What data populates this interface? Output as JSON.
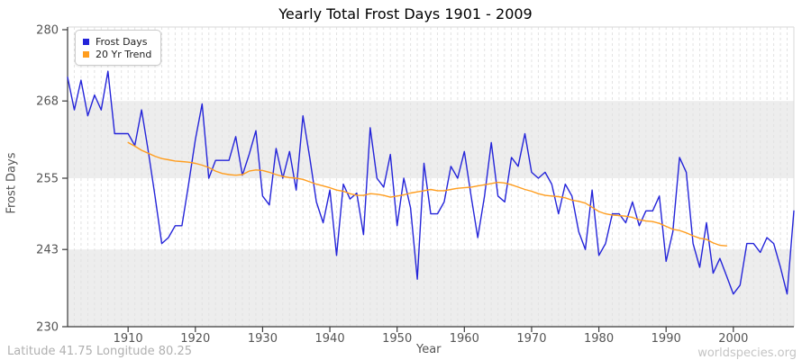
{
  "title": "Yearly Total Frost Days 1901 - 2009",
  "axes": {
    "x_label": "Year",
    "y_label": "Frost Days",
    "y_ticks": [
      280,
      268,
      255,
      243,
      230
    ],
    "x_ticks": [
      1910,
      1920,
      1930,
      1940,
      1950,
      1960,
      1970,
      1980,
      1990,
      2000
    ],
    "x_min": 1901,
    "x_max": 2009,
    "y_min": 230,
    "y_max": 280
  },
  "legend": {
    "items": [
      {
        "label": "Frost Days",
        "color": "#2424d9",
        "swatch": "blue-square"
      },
      {
        "label": "20 Yr Trend",
        "color": "#ff9d1e",
        "swatch": "orange-square"
      }
    ]
  },
  "footer": {
    "left": "Latitude 41.75 Longitude 80.25",
    "right": "worldspecies.org"
  },
  "colors": {
    "frost_line": "#2424d9",
    "trend_line": "#ff9d1e",
    "band_gray": "#ededed",
    "plot_white": "#ffffff",
    "gridline": "#e2e2e2",
    "axis": "#3a3a3a",
    "tick_label": "#555555",
    "border_light": "#d9d9d9"
  },
  "chart_data": {
    "type": "line",
    "title": "Yearly Total Frost Days 1901 - 2009",
    "xlabel": "Year",
    "ylabel": "Frost Days",
    "xlim": [
      1901,
      2009
    ],
    "ylim": [
      230,
      280
    ],
    "grid": "vertical-dashed-yearly, alternating horizontal bands",
    "legend_position": "top-left",
    "series": [
      {
        "name": "Frost Days",
        "start_year": 1901,
        "color": "#2424d9",
        "values": [
          272,
          266.5,
          271.5,
          265.5,
          269,
          266.5,
          273,
          262.5,
          262.5,
          262.5,
          260.5,
          266.5,
          259.5,
          252,
          244,
          245,
          247,
          247,
          254,
          261.5,
          267.5,
          255,
          258,
          258,
          258,
          262,
          255.5,
          259,
          263,
          252,
          250.5,
          260,
          255,
          259.5,
          253,
          265.5,
          258.5,
          251,
          247.5,
          253,
          242,
          254,
          251.5,
          252.5,
          245.5,
          263.5,
          255,
          253.5,
          259,
          247,
          255,
          250,
          238,
          257.5,
          249,
          249,
          251,
          257,
          255,
          259.5,
          252,
          245,
          252,
          261,
          252,
          251,
          258.5,
          257,
          262.5,
          256,
          255,
          256,
          254,
          249,
          254,
          252,
          246,
          243,
          253,
          242,
          244,
          249,
          249,
          247.5,
          251,
          247,
          249.5,
          249.5,
          252,
          241,
          246,
          258.5,
          256,
          244,
          240,
          247.5,
          239,
          241.5,
          238.5,
          235.5,
          237,
          244,
          244,
          242.5,
          245,
          244,
          240,
          235.5,
          249.5
        ]
      },
      {
        "name": "20 Yr Trend",
        "start_year": 1910,
        "color": "#ff9d1e",
        "values": [
          261.0,
          260.4,
          259.7,
          259.2,
          258.7,
          258.3,
          258.1,
          257.9,
          257.8,
          257.7,
          257.5,
          257.2,
          256.8,
          256.2,
          255.8,
          255.6,
          255.5,
          255.6,
          256.2,
          256.4,
          256.3,
          256.0,
          255.6,
          255.3,
          255.1,
          255.0,
          254.8,
          254.4,
          254.0,
          253.7,
          253.4,
          253.0,
          252.8,
          252.4,
          252.1,
          252.1,
          252.4,
          252.3,
          252.1,
          251.8,
          252.0,
          252.2,
          252.5,
          252.7,
          252.9,
          253.1,
          252.9,
          252.9,
          253.1,
          253.3,
          253.4,
          253.5,
          253.7,
          253.9,
          254.1,
          254.3,
          254.2,
          253.9,
          253.5,
          253.1,
          252.8,
          252.4,
          252.1,
          252.0,
          251.9,
          251.7,
          251.3,
          251.1,
          250.8,
          250.1,
          249.4,
          249.0,
          248.8,
          248.7,
          248.6,
          248.4,
          248.0,
          247.8,
          247.7,
          247.4,
          246.9,
          246.4,
          246.2,
          245.8,
          245.3,
          244.9,
          244.7,
          244.1,
          243.7,
          243.6
        ]
      }
    ]
  }
}
